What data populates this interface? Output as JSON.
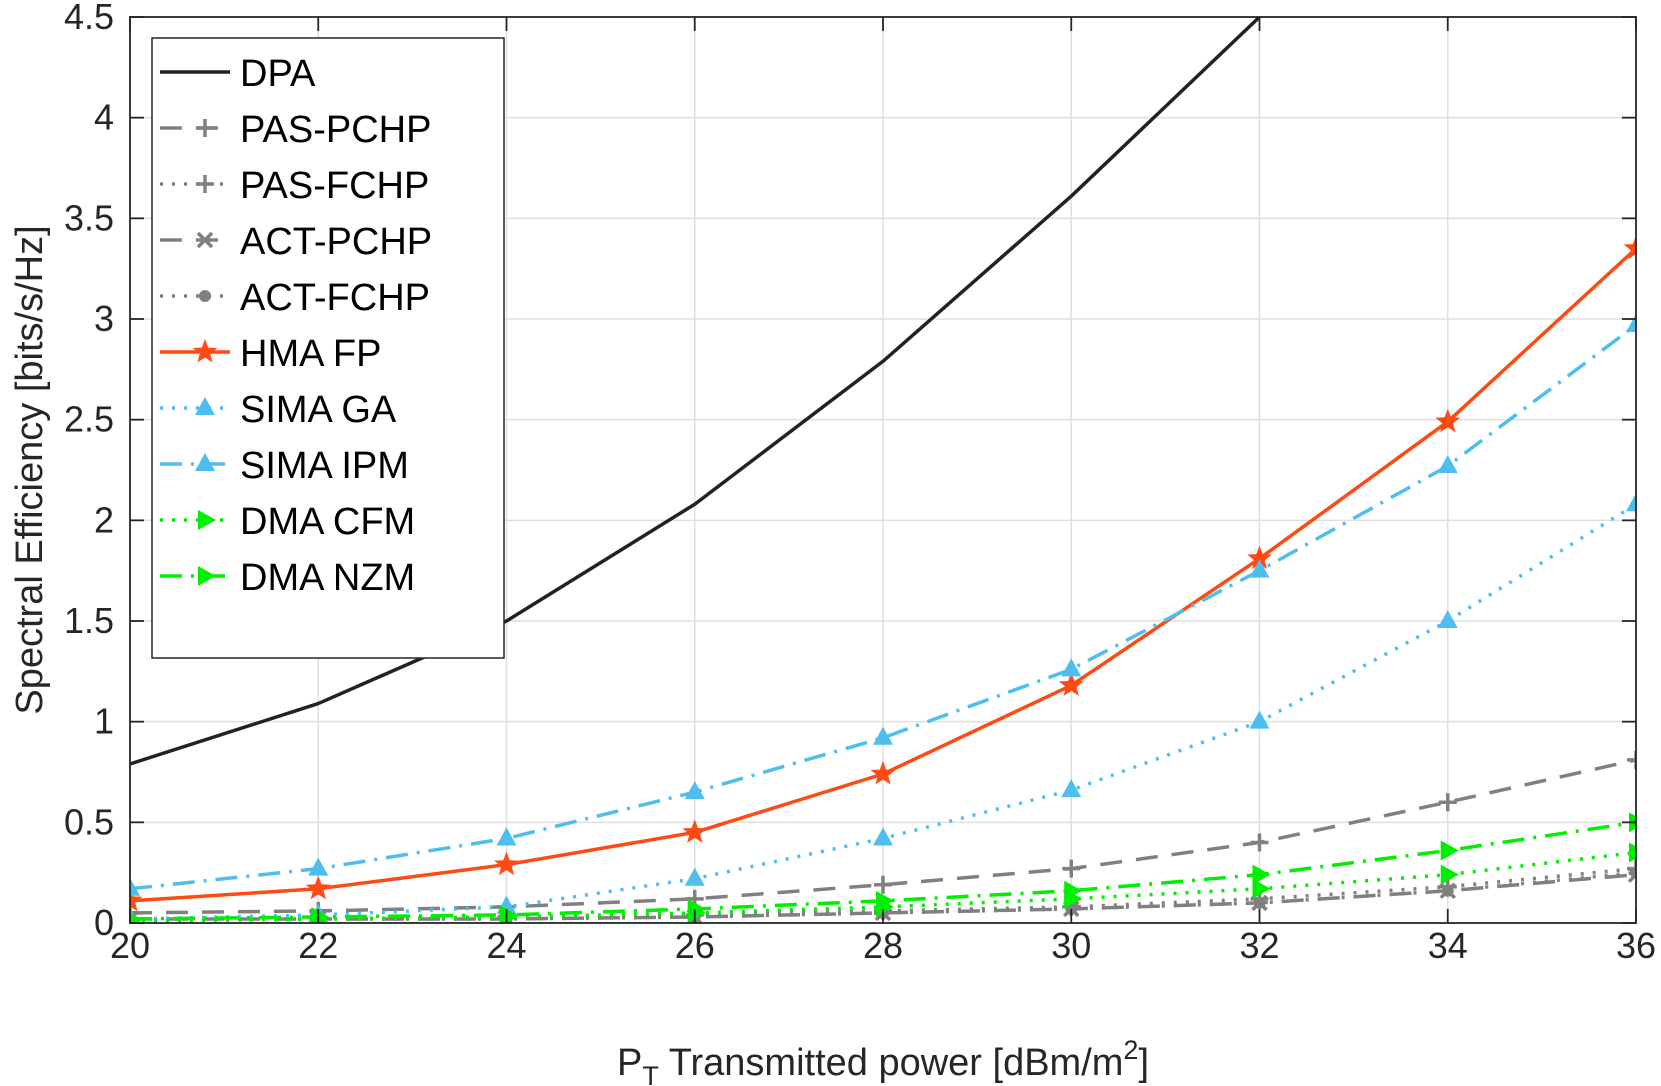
{
  "chart_data": {
    "type": "line",
    "title": "",
    "xlabel": {
      "main": "P",
      "sub": "T",
      "rest": " Transmitted power [dBm/m",
      "sup": "2",
      "end": "]"
    },
    "ylabel": "Spectral Efficiency [bits/s/Hz]",
    "xlim": [
      20,
      36
    ],
    "ylim": [
      0,
      4.5
    ],
    "xticks": [
      "20",
      "22",
      "24",
      "26",
      "28",
      "30",
      "32",
      "34",
      "36"
    ],
    "yticks": [
      "0",
      "0.5",
      "1",
      "1.5",
      "2",
      "2.5",
      "3",
      "3.5",
      "4",
      "4.5"
    ],
    "xtick_values": [
      20,
      22,
      24,
      26,
      28,
      30,
      32,
      34,
      36
    ],
    "ytick_values": [
      0,
      0.5,
      1,
      1.5,
      2,
      2.5,
      3,
      3.5,
      4,
      4.5
    ],
    "grid": true,
    "legend_position": "top-left",
    "x": [
      20,
      22,
      24,
      26,
      28,
      30,
      32,
      34,
      36
    ],
    "series": [
      {
        "name": "DPA",
        "color": "#222222",
        "dash": "solid",
        "marker": "none",
        "values": [
          0.79,
          1.09,
          1.5,
          2.08,
          2.79,
          3.61,
          4.5,
          null,
          null
        ]
      },
      {
        "name": "PAS-PCHP",
        "color": "#808080",
        "dash": "dashed",
        "marker": "plus",
        "values": [
          0.05,
          0.06,
          0.08,
          0.12,
          0.19,
          0.27,
          0.4,
          0.6,
          0.81
        ]
      },
      {
        "name": "PAS-FCHP",
        "color": "#808080",
        "dash": "dotted",
        "marker": "plus",
        "values": [
          0.02,
          0.02,
          0.03,
          0.04,
          0.06,
          0.08,
          0.12,
          0.18,
          0.27
        ]
      },
      {
        "name": "ACT-PCHP",
        "color": "#808080",
        "dash": "dashed",
        "marker": "cross",
        "values": [
          0.02,
          0.02,
          0.02,
          0.03,
          0.05,
          0.07,
          0.1,
          0.16,
          0.24
        ]
      },
      {
        "name": "ACT-FCHP",
        "color": "#808080",
        "dash": "dotted",
        "marker": "dot",
        "values": [
          0.02,
          0.02,
          0.02,
          0.03,
          0.05,
          0.07,
          0.1,
          0.16,
          0.25
        ]
      },
      {
        "name": "HMA FP",
        "color": "#ff4a14",
        "dash": "solid",
        "marker": "star",
        "values": [
          0.11,
          0.17,
          0.29,
          0.45,
          0.74,
          1.18,
          1.81,
          2.49,
          3.35
        ]
      },
      {
        "name": "SIMA GA",
        "color": "#4dbeee",
        "dash": "dotted",
        "marker": "triangle",
        "values": [
          0.02,
          0.04,
          0.08,
          0.22,
          0.42,
          0.66,
          1.0,
          1.5,
          2.08
        ]
      },
      {
        "name": "SIMA IPM",
        "color": "#4dbeee",
        "dash": "dashdot",
        "marker": "triangle",
        "values": [
          0.17,
          0.27,
          0.42,
          0.65,
          0.92,
          1.26,
          1.75,
          2.27,
          2.97
        ]
      },
      {
        "name": "DMA CFM",
        "color": "#00ee00",
        "dash": "dotted",
        "marker": "triangle-right",
        "values": [
          0.01,
          0.02,
          0.03,
          0.05,
          0.08,
          0.12,
          0.17,
          0.24,
          0.35
        ]
      },
      {
        "name": "DMA NZM",
        "color": "#00ee00",
        "dash": "dashdot",
        "marker": "triangle-right",
        "values": [
          0.02,
          0.03,
          0.04,
          0.07,
          0.11,
          0.16,
          0.24,
          0.36,
          0.5
        ]
      }
    ]
  }
}
